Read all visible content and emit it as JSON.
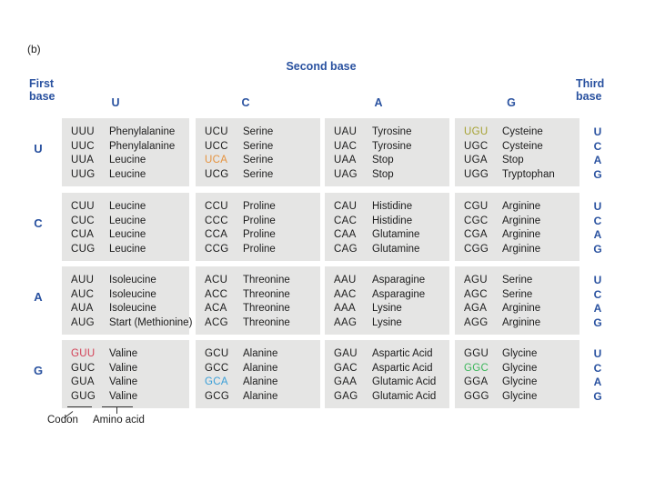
{
  "figure_label": "(b)",
  "axis_labels": {
    "second_base": "Second base",
    "first_base": "First base",
    "third_base": "Third base"
  },
  "second_base_letters": [
    "U",
    "C",
    "A",
    "G"
  ],
  "third_base_letters": [
    "U",
    "C",
    "A",
    "G"
  ],
  "legend": {
    "codon_label": "Codon",
    "amino_label": "Amino acid"
  },
  "colors": {
    "header_blue": "#2a52a0",
    "cell_background": "#e5e5e4",
    "text": "#1c1c1c",
    "highlight_orange": "#e5933f",
    "highlight_olive": "#a6a233",
    "highlight_red": "#d34056",
    "highlight_blue": "#3a9fd8",
    "highlight_green": "#3bb65a"
  },
  "highlighted_codons": {
    "UCA": "#e5933f",
    "UGU": "#a6a233",
    "GUU": "#d34056",
    "GCA": "#3a9fd8",
    "GGC": "#3bb65a"
  },
  "rows": [
    {
      "first_base": "U",
      "cells": [
        {
          "entries": [
            {
              "codon": "UUU",
              "amino": "Phenylalanine"
            },
            {
              "codon": "UUC",
              "amino": "Phenylalanine"
            },
            {
              "codon": "UUA",
              "amino": "Leucine"
            },
            {
              "codon": "UUG",
              "amino": "Leucine"
            }
          ]
        },
        {
          "entries": [
            {
              "codon": "UCU",
              "amino": "Serine"
            },
            {
              "codon": "UCC",
              "amino": "Serine"
            },
            {
              "codon": "UCA",
              "amino": "Serine"
            },
            {
              "codon": "UCG",
              "amino": "Serine"
            }
          ]
        },
        {
          "entries": [
            {
              "codon": "UAU",
              "amino": "Tyrosine"
            },
            {
              "codon": "UAC",
              "amino": "Tyrosine"
            },
            {
              "codon": "UAA",
              "amino": "Stop"
            },
            {
              "codon": "UAG",
              "amino": "Stop"
            }
          ]
        },
        {
          "entries": [
            {
              "codon": "UGU",
              "amino": "Cysteine"
            },
            {
              "codon": "UGC",
              "amino": "Cysteine"
            },
            {
              "codon": "UGA",
              "amino": "Stop"
            },
            {
              "codon": "UGG",
              "amino": "Tryptophan"
            }
          ]
        }
      ]
    },
    {
      "first_base": "C",
      "cells": [
        {
          "entries": [
            {
              "codon": "CUU",
              "amino": "Leucine"
            },
            {
              "codon": "CUC",
              "amino": "Leucine"
            },
            {
              "codon": "CUA",
              "amino": "Leucine"
            },
            {
              "codon": "CUG",
              "amino": "Leucine"
            }
          ]
        },
        {
          "entries": [
            {
              "codon": "CCU",
              "amino": "Proline"
            },
            {
              "codon": "CCC",
              "amino": "Proline"
            },
            {
              "codon": "CCA",
              "amino": "Proline"
            },
            {
              "codon": "CCG",
              "amino": "Proline"
            }
          ]
        },
        {
          "entries": [
            {
              "codon": "CAU",
              "amino": "Histidine"
            },
            {
              "codon": "CAC",
              "amino": "Histidine"
            },
            {
              "codon": "CAA",
              "amino": "Glutamine"
            },
            {
              "codon": "CAG",
              "amino": "Glutamine"
            }
          ]
        },
        {
          "entries": [
            {
              "codon": "CGU",
              "amino": "Arginine"
            },
            {
              "codon": "CGC",
              "amino": "Arginine"
            },
            {
              "codon": "CGA",
              "amino": "Arginine"
            },
            {
              "codon": "CGG",
              "amino": "Arginine"
            }
          ]
        }
      ]
    },
    {
      "first_base": "A",
      "cells": [
        {
          "entries": [
            {
              "codon": "AUU",
              "amino": "Isoleucine"
            },
            {
              "codon": "AUC",
              "amino": "Isoleucine"
            },
            {
              "codon": "AUA",
              "amino": "Isoleucine"
            },
            {
              "codon": "AUG",
              "amino": "Start (Methionine)"
            }
          ]
        },
        {
          "entries": [
            {
              "codon": "ACU",
              "amino": "Threonine"
            },
            {
              "codon": "ACC",
              "amino": "Threonine"
            },
            {
              "codon": "ACA",
              "amino": "Threonine"
            },
            {
              "codon": "ACG",
              "amino": "Threonine"
            }
          ]
        },
        {
          "entries": [
            {
              "codon": "AAU",
              "amino": "Asparagine"
            },
            {
              "codon": "AAC",
              "amino": "Asparagine"
            },
            {
              "codon": "AAA",
              "amino": "Lysine"
            },
            {
              "codon": "AAG",
              "amino": "Lysine"
            }
          ]
        },
        {
          "entries": [
            {
              "codon": "AGU",
              "amino": "Serine"
            },
            {
              "codon": "AGC",
              "amino": "Serine"
            },
            {
              "codon": "AGA",
              "amino": "Arginine"
            },
            {
              "codon": "AGG",
              "amino": "Arginine"
            }
          ]
        }
      ]
    },
    {
      "first_base": "G",
      "cells": [
        {
          "entries": [
            {
              "codon": "GUU",
              "amino": "Valine"
            },
            {
              "codon": "GUC",
              "amino": "Valine"
            },
            {
              "codon": "GUA",
              "amino": "Valine"
            },
            {
              "codon": "GUG",
              "amino": "Valine"
            }
          ]
        },
        {
          "entries": [
            {
              "codon": "GCU",
              "amino": "Alanine"
            },
            {
              "codon": "GCC",
              "amino": "Alanine"
            },
            {
              "codon": "GCA",
              "amino": "Alanine"
            },
            {
              "codon": "GCG",
              "amino": "Alanine"
            }
          ]
        },
        {
          "entries": [
            {
              "codon": "GAU",
              "amino": "Aspartic Acid"
            },
            {
              "codon": "GAC",
              "amino": "Aspartic Acid"
            },
            {
              "codon": "GAA",
              "amino": "Glutamic Acid"
            },
            {
              "codon": "GAG",
              "amino": "Glutamic Acid"
            }
          ]
        },
        {
          "entries": [
            {
              "codon": "GGU",
              "amino": "Glycine"
            },
            {
              "codon": "GGC",
              "amino": "Glycine"
            },
            {
              "codon": "GGA",
              "amino": "Glycine"
            },
            {
              "codon": "GGG",
              "amino": "Glycine"
            }
          ]
        }
      ]
    }
  ]
}
